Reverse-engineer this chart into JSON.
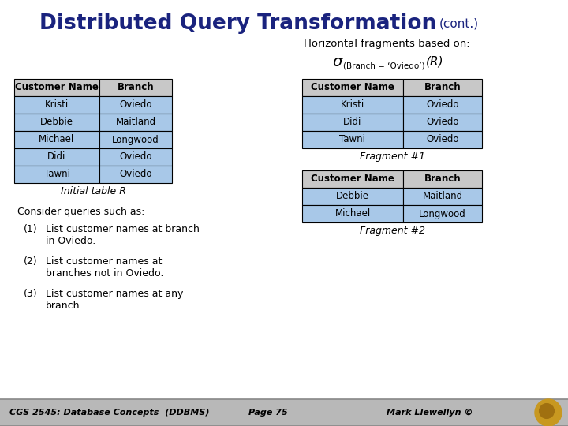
{
  "title_main": "Distributed Query Transformation",
  "title_cont": "(cont.)",
  "title_color": "#1a237e",
  "bg_color": "#ffffff",
  "subtitle": "Horizontal fragments based on:",
  "sigma_main": "σ",
  "sigma_sub": "(Branch = ‘Oviedo’)",
  "sigma_R": "(R)",
  "initial_table_headers": [
    "Customer Name",
    "Branch"
  ],
  "initial_table_data": [
    [
      "Kristi",
      "Oviedo"
    ],
    [
      "Debbie",
      "Maitland"
    ],
    [
      "Michael",
      "Longwood"
    ],
    [
      "Didi",
      "Oviedo"
    ],
    [
      "Tawni",
      "Oviedo"
    ]
  ],
  "initial_table_label": "Initial table R",
  "fragment1_headers": [
    "Customer Name",
    "Branch"
  ],
  "fragment1_data": [
    [
      "Kristi",
      "Oviedo"
    ],
    [
      "Didi",
      "Oviedo"
    ],
    [
      "Tawni",
      "Oviedo"
    ]
  ],
  "fragment1_label": "Fragment #1",
  "fragment2_headers": [
    "Customer Name",
    "Branch"
  ],
  "fragment2_data": [
    [
      "Debbie",
      "Maitland"
    ],
    [
      "Michael",
      "Longwood"
    ]
  ],
  "fragment2_label": "Fragment #2",
  "queries_title": "Consider queries such as:",
  "queries": [
    [
      "(1)",
      "List customer names at branch\nin Oviedo."
    ],
    [
      "(2)",
      "List customer names at\nbranches not in Oviedo."
    ],
    [
      "(3)",
      "List customer names at any\nbranch."
    ]
  ],
  "footer_left": "CGS 2545: Database Concepts  (DDBMS)",
  "footer_center": "Page 75",
  "footer_right": "Mark Llewellyn ©",
  "footer_bg": "#b8b8b8",
  "header_cell_bg": "#c8c8c8",
  "data_cell_bg": "#a8c8e8",
  "table_border_color": "#000000"
}
